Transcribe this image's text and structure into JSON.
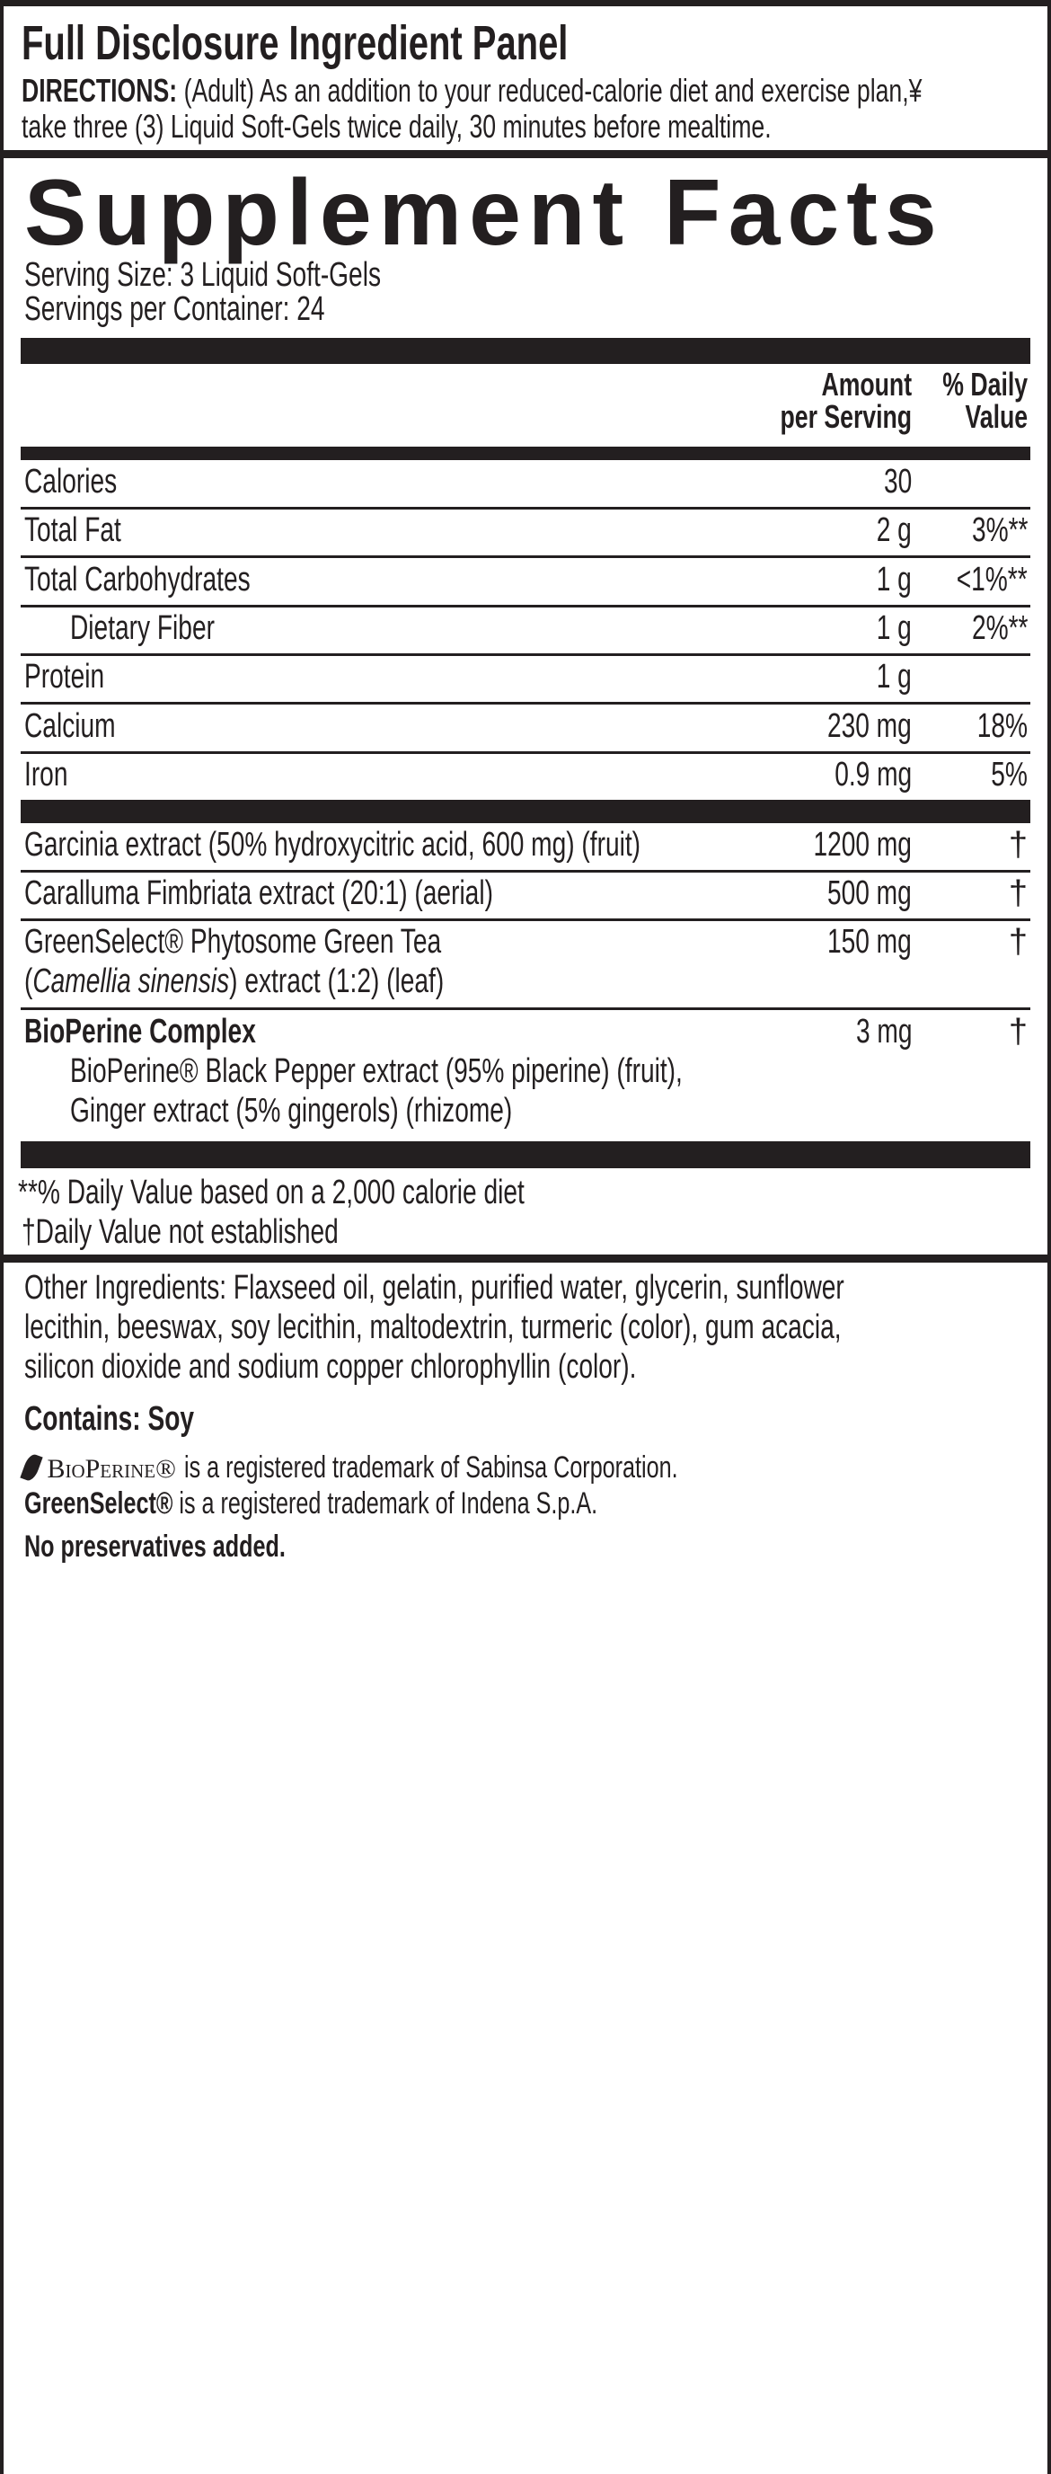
{
  "panel": {
    "title": "Full Disclosure Ingredient Panel",
    "directions_label": "DIRECTIONS:",
    "directions_line1": "(Adult) As an addition to your reduced-calorie diet and exercise plan,¥",
    "directions_line2": "take three (3) Liquid Soft-Gels twice daily, 30 minutes before mealtime."
  },
  "facts": {
    "title": "Supplement Facts",
    "serving_size": "Serving Size: 3 Liquid Soft-Gels",
    "servings_per_container": "Servings per Container: 24",
    "header": {
      "amount_1": "Amount",
      "amount_2": "per Serving",
      "dv_1": "% Daily",
      "dv_2": "Value"
    },
    "nutrients": [
      {
        "name": "Calories",
        "amount": "30",
        "dv": ""
      },
      {
        "name": "Total Fat",
        "amount": "2 g",
        "dv": "3%**"
      },
      {
        "name": "Total Carbohydrates",
        "amount": "1 g",
        "dv": "<1%**"
      },
      {
        "name": "Dietary Fiber",
        "amount": "1 g",
        "dv": "2%**"
      },
      {
        "name": "Protein",
        "amount": "1 g",
        "dv": ""
      },
      {
        "name": "Calcium",
        "amount": "230 mg",
        "dv": "18%"
      },
      {
        "name": "Iron",
        "amount": "0.9 mg",
        "dv": "5%"
      }
    ],
    "ingredients": [
      {
        "name": "Garcinia extract (50% hydroxycitric acid, 600 mg) (fruit)",
        "amount": "1200 mg",
        "dv": "†"
      },
      {
        "name": "Caralluma Fimbriata extract (20:1) (aerial)",
        "amount": "500 mg",
        "dv": "†"
      },
      {
        "name": "GreenSelect® Phytosome Green Tea",
        "name_2_italic": "Camellia sinensis",
        "name_2_rest": ") extract (1:2) (leaf)",
        "amount": "150 mg",
        "dv": "†"
      },
      {
        "name": "BioPerine Complex",
        "sub_1": "BioPerine® Black Pepper extract (95% piperine) (fruit),",
        "sub_2": "Ginger extract (5% gingerols) (rhizome)",
        "amount": "3 mg",
        "dv": "†"
      }
    ],
    "footnote_1": "**% Daily Value based on a 2,000 calorie diet",
    "footnote_2": "†Daily Value not established"
  },
  "other": {
    "line1": "Other Ingredients:  Flaxseed oil, gelatin, purified water, glycerin, sunflower",
    "line2": "lecithin, beeswax, soy lecithin, maltodextrin, turmeric (color), gum acacia,",
    "line3": "silicon dioxide and sodium copper chlorophyllin (color).",
    "contains": "Contains: Soy",
    "bioperine_logo": "BioPerine®",
    "bioperine_tm": "is a registered trademark of Sabinsa Corporation.",
    "greenselect_brand": "GreenSelect®",
    "greenselect_tm": "is a registered trademark of Indena S.p.A.",
    "no_preservatives": "No preservatives added."
  }
}
